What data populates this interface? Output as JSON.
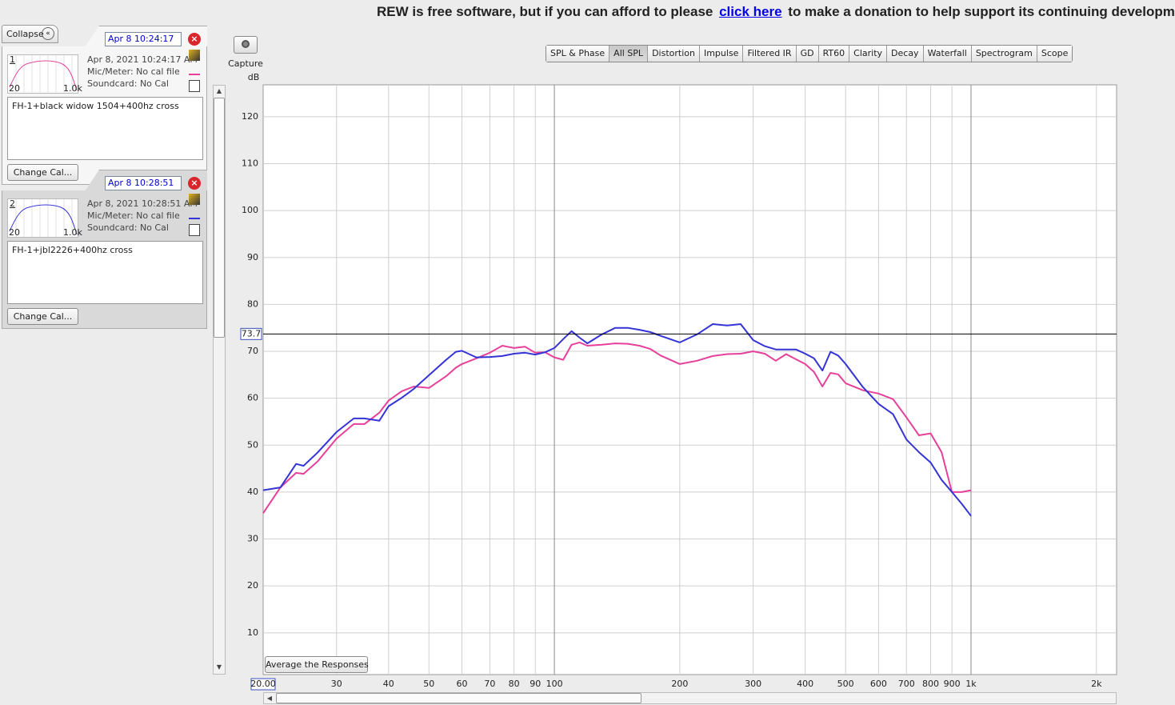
{
  "banner": {
    "text_before": "REW is free software, but if you can afford to please",
    "link": "click here",
    "text_after": "to make a donation to help support its continuing developm"
  },
  "sidebar": {
    "collapse": "Collapse",
    "measurements": [
      {
        "number": 1,
        "date_field": "Apr 8 10:24:17",
        "thumb_min": "20",
        "thumb_max": "1.0k",
        "timestamp": "Apr 8, 2021 10:24:17 AM",
        "mic": "Mic/Meter: No cal file",
        "soundcard": "Soundcard: No Cal",
        "notes": "FH-1+black widow 1504+400hz cross",
        "button": "Change Cal..."
      },
      {
        "number": 2,
        "date_field": "Apr 8 10:28:51",
        "thumb_min": "20",
        "thumb_max": "1.0k",
        "timestamp": "Apr 8, 2021 10:28:51 AM",
        "mic": "Mic/Meter: No cal file",
        "soundcard": "Soundcard: No Cal",
        "notes": "FH-1+jbl2226+400hz cross",
        "button": "Change Cal..."
      }
    ]
  },
  "toolbar": {
    "capture": "Capture",
    "tabs": [
      "SPL & Phase",
      "All SPL",
      "Distortion",
      "Impulse",
      "Filtered IR",
      "GD",
      "RT60",
      "Clarity",
      "Decay",
      "Waterfall",
      "Spectrogram",
      "Scope"
    ],
    "active_tab": 1
  },
  "controls": {
    "average": "Average the Responses"
  },
  "chart_data": {
    "type": "line",
    "y_label": "dB",
    "log_x": true,
    "grid": true,
    "x": [
      20,
      22,
      24,
      25,
      27,
      30,
      33,
      35,
      38,
      40,
      43,
      46,
      50,
      55,
      58,
      60,
      65,
      70,
      75,
      80,
      85,
      90,
      95,
      100,
      105,
      110,
      115,
      120,
      130,
      140,
      150,
      160,
      170,
      180,
      200,
      220,
      240,
      260,
      280,
      300,
      320,
      340,
      360,
      380,
      400,
      420,
      440,
      460,
      480,
      500,
      550,
      600,
      650,
      700,
      750,
      800,
      850,
      900,
      950,
      1000
    ],
    "series": [
      {
        "color": "#e6409b",
        "values": [
          35.5,
          41.0,
          44.1,
          43.9,
          46.5,
          51.4,
          54.5,
          54.5,
          56.9,
          59.5,
          61.5,
          62.5,
          62.2,
          64.7,
          66.5,
          67.3,
          68.5,
          69.7,
          71.2,
          70.7,
          71.0,
          69.7,
          69.8,
          68.7,
          68.2,
          71.4,
          71.9,
          71.2,
          71.4,
          71.7,
          71.6,
          71.2,
          70.5,
          69.1,
          67.3,
          68.0,
          69.0,
          69.4,
          69.5,
          70.0,
          69.5,
          68.0,
          69.4,
          68.3,
          67.3,
          65.6,
          62.5,
          65.4,
          65.1,
          63.2,
          61.7,
          61.0,
          59.8,
          55.9,
          52.1,
          52.5,
          48.5,
          40.0,
          40.0,
          40.4
        ]
      },
      {
        "color": "#3434d6",
        "values": [
          40.4,
          41.0,
          46.0,
          45.6,
          48.4,
          52.8,
          55.7,
          55.7,
          55.2,
          58.3,
          60.1,
          62.0,
          64.9,
          68.2,
          69.9,
          70.1,
          68.7,
          68.8,
          69.0,
          69.5,
          69.7,
          69.3,
          69.8,
          70.7,
          72.6,
          74.3,
          72.9,
          71.7,
          73.6,
          75.0,
          75.0,
          74.6,
          74.1,
          73.3,
          71.9,
          73.6,
          75.8,
          75.5,
          75.8,
          72.4,
          71.1,
          70.4,
          70.4,
          70.4,
          69.5,
          68.5,
          65.9,
          69.9,
          69.1,
          67.3,
          62.4,
          58.8,
          56.6,
          51.2,
          48.5,
          46.3,
          42.6,
          40.0,
          37.5,
          34.9
        ]
      }
    ],
    "xlim": [
      20,
      2236
    ],
    "ylim": [
      1.1,
      126.8
    ],
    "xticks": [
      {
        "value": 20,
        "label": "20.00"
      },
      30,
      40,
      50,
      60,
      70,
      80,
      90,
      100,
      200,
      300,
      400,
      500,
      600,
      700,
      800,
      900,
      {
        "value": 1000,
        "label": "1k"
      },
      {
        "value": 2000,
        "label": "2k"
      }
    ],
    "yticks": [
      10,
      20,
      30,
      40,
      50,
      60,
      70,
      80,
      90,
      100,
      110,
      120
    ],
    "cursor": 73.7
  }
}
